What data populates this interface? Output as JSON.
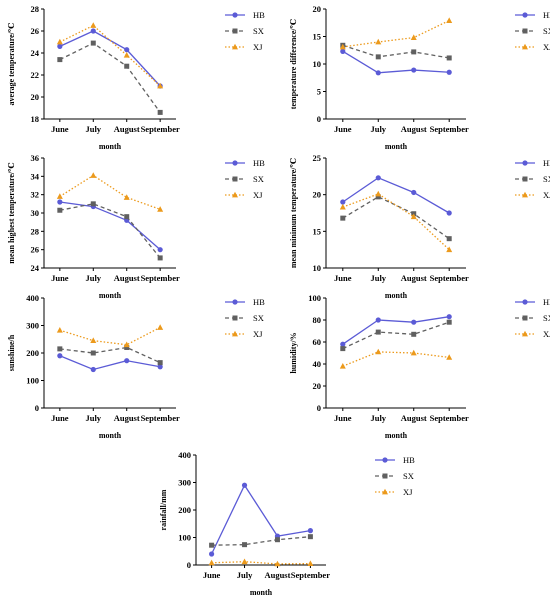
{
  "chart_data": [
    {
      "type": "line",
      "categories": [
        "June",
        "July",
        "August",
        "September"
      ],
      "ylabel": "average temperature/℃",
      "xlabel": "month",
      "ylim": [
        18,
        28
      ],
      "yticks": [
        18,
        20,
        22,
        24,
        26,
        28
      ],
      "series": [
        {
          "name": "HB",
          "values": [
            24.6,
            26.0,
            24.3,
            21.0
          ]
        },
        {
          "name": "SX",
          "values": [
            23.4,
            24.9,
            22.8,
            18.6
          ]
        },
        {
          "name": "XJ",
          "values": [
            25.0,
            26.5,
            23.8,
            21.0
          ]
        }
      ]
    },
    {
      "type": "line",
      "categories": [
        "June",
        "July",
        "August",
        "September"
      ],
      "ylabel": "temperature difference/℃",
      "xlabel": "month",
      "ylim": [
        0,
        20
      ],
      "yticks": [
        0,
        5,
        10,
        15,
        20
      ],
      "series": [
        {
          "name": "HB",
          "values": [
            12.3,
            8.4,
            8.9,
            8.5
          ]
        },
        {
          "name": "SX",
          "values": [
            13.4,
            11.3,
            12.2,
            11.1
          ]
        },
        {
          "name": "XJ",
          "values": [
            13.1,
            14.0,
            14.8,
            17.9
          ]
        }
      ]
    },
    {
      "type": "line",
      "categories": [
        "June",
        "July",
        "August",
        "September"
      ],
      "ylabel": "mean highest temperature/℃",
      "xlabel": "month",
      "ylim": [
        24,
        36
      ],
      "yticks": [
        24,
        26,
        28,
        30,
        32,
        34,
        36
      ],
      "series": [
        {
          "name": "HB",
          "values": [
            31.2,
            30.7,
            29.2,
            26.0
          ]
        },
        {
          "name": "SX",
          "values": [
            30.3,
            31.0,
            29.6,
            25.1
          ]
        },
        {
          "name": "XJ",
          "values": [
            31.8,
            34.1,
            31.7,
            30.4
          ]
        }
      ]
    },
    {
      "type": "line",
      "categories": [
        "June",
        "July",
        "August",
        "September"
      ],
      "ylabel": "mean minimum temperature/℃",
      "xlabel": "month",
      "ylim": [
        10,
        25
      ],
      "yticks": [
        10,
        15,
        20,
        25
      ],
      "series": [
        {
          "name": "HB",
          "values": [
            19.0,
            22.3,
            20.3,
            17.5
          ]
        },
        {
          "name": "SX",
          "values": [
            16.8,
            19.7,
            17.4,
            14.0
          ]
        },
        {
          "name": "XJ",
          "values": [
            18.3,
            20.1,
            17.0,
            12.5
          ]
        }
      ]
    },
    {
      "type": "line",
      "categories": [
        "June",
        "July",
        "August",
        "September"
      ],
      "ylabel": "sunshine/h",
      "xlabel": "month",
      "ylim": [
        0,
        400
      ],
      "yticks": [
        0,
        100,
        200,
        300,
        400
      ],
      "series": [
        {
          "name": "HB",
          "values": [
            190,
            140,
            172,
            150
          ]
        },
        {
          "name": "SX",
          "values": [
            215,
            200,
            220,
            165
          ]
        },
        {
          "name": "XJ",
          "values": [
            283,
            245,
            230,
            293
          ]
        }
      ]
    },
    {
      "type": "line",
      "categories": [
        "June",
        "July",
        "August",
        "September"
      ],
      "ylabel": "humidity/%",
      "xlabel": "month",
      "ylim": [
        0,
        100
      ],
      "yticks": [
        0,
        20,
        40,
        60,
        80,
        100
      ],
      "series": [
        {
          "name": "HB",
          "values": [
            58,
            80,
            78,
            83
          ]
        },
        {
          "name": "SX",
          "values": [
            54,
            69,
            67,
            78
          ]
        },
        {
          "name": "XJ",
          "values": [
            38,
            51,
            50,
            46
          ]
        }
      ]
    },
    {
      "type": "line",
      "categories": [
        "June",
        "July",
        "August",
        "September"
      ],
      "ylabel": "rainfall/mm",
      "xlabel": "month",
      "ylim": [
        0,
        400
      ],
      "yticks": [
        0,
        100,
        200,
        300,
        400
      ],
      "series": [
        {
          "name": "HB",
          "values": [
            40,
            290,
            105,
            125
          ]
        },
        {
          "name": "SX",
          "values": [
            72,
            74,
            92,
            103
          ]
        },
        {
          "name": "XJ",
          "values": [
            8,
            12,
            4,
            5
          ]
        }
      ]
    }
  ],
  "series_styles": {
    "HB": {
      "color": "#5b5bd6",
      "marker": "circle",
      "dash": "solid"
    },
    "SX": {
      "color": "#606060",
      "marker": "square",
      "dash": "dashed"
    },
    "XJ": {
      "color": "#ec9a1c",
      "marker": "triangle",
      "dash": "dotted"
    }
  }
}
